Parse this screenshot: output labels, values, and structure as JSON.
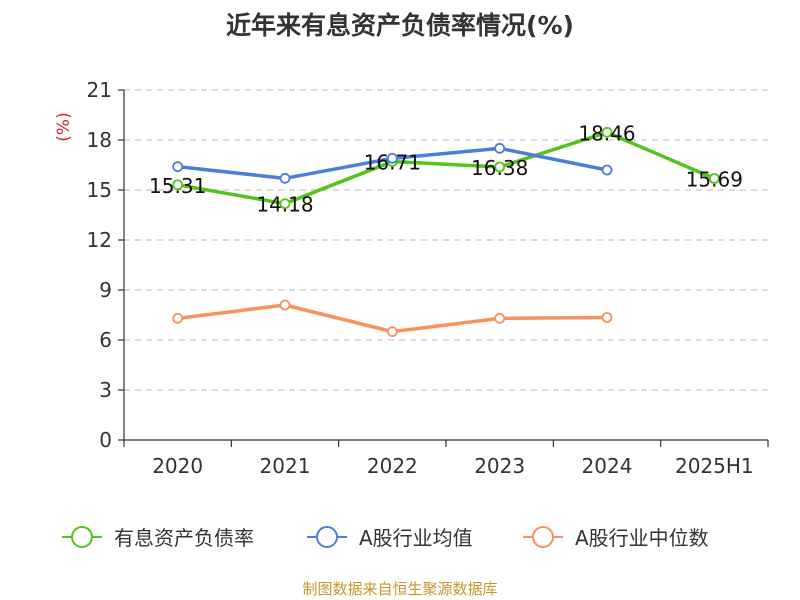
{
  "title": "近年来有息资产负债率情况(%)",
  "footer": "制图数据来自恒生聚源数据库",
  "chart_data": {
    "type": "line",
    "title": "近年来有息资产负债率情况(%)",
    "xlabel": "",
    "ylabel": "(%)",
    "ylim": [
      0,
      21
    ],
    "yticks": [
      0,
      3,
      6,
      9,
      12,
      15,
      18,
      21
    ],
    "categories": [
      "2020",
      "2021",
      "2022",
      "2023",
      "2024",
      "2025H1"
    ],
    "grid": true,
    "legend_position": "bottom",
    "series": [
      {
        "name": "有息资产负债率",
        "color": "#52c41a",
        "values": [
          15.31,
          14.18,
          16.71,
          16.38,
          18.46,
          15.69
        ],
        "labels": [
          "15.31",
          "14.18",
          "16.71",
          "16.38",
          "18.46",
          "15.69"
        ]
      },
      {
        "name": "A股行业均值",
        "color": "#4a7fd6",
        "values": [
          16.4,
          15.7,
          16.9,
          17.5,
          16.2,
          null
        ]
      },
      {
        "name": "A股行业中位数",
        "color": "#f5925e",
        "values": [
          7.3,
          8.1,
          6.5,
          7.3,
          7.35,
          null
        ]
      }
    ]
  }
}
